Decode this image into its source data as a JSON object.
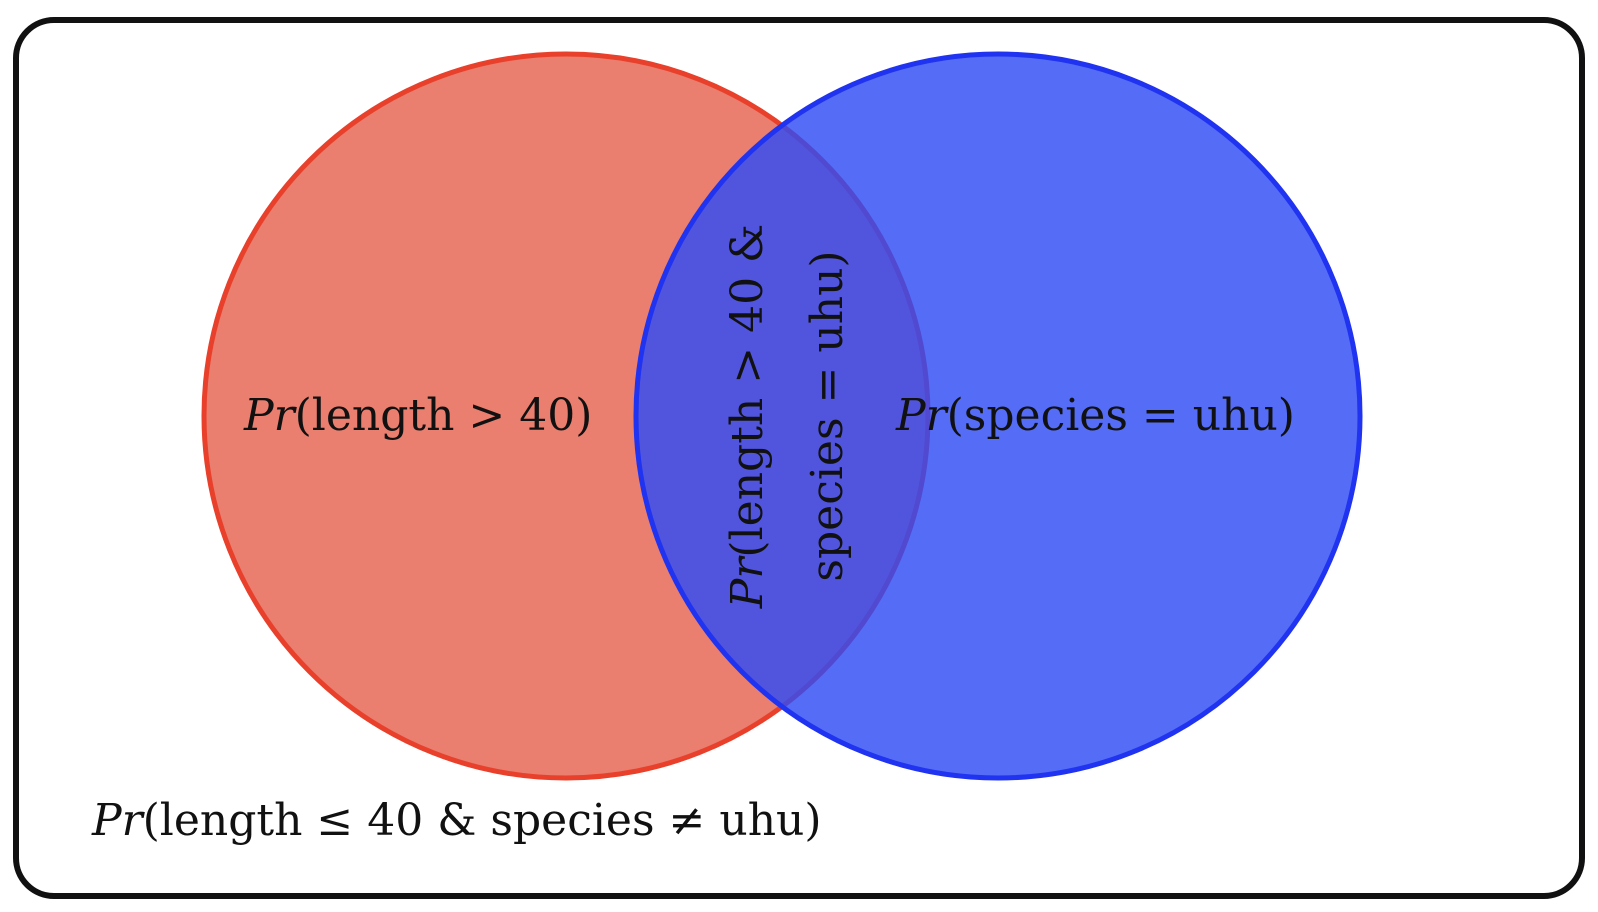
{
  "diagram": {
    "type": "venn",
    "colors": {
      "set_a_fill": "#e8705f",
      "set_a_stroke": "#e8402b",
      "set_b_fill": "#2f4cf5",
      "set_b_stroke": "#1f33f0",
      "frame": "#111111",
      "text": "#111111"
    },
    "sets": [
      {
        "id": "a",
        "prefix": "Pr",
        "text": "(length > 40)"
      },
      {
        "id": "b",
        "prefix": "Pr",
        "text": "(species = uhu)"
      }
    ],
    "intersection": {
      "prefix": "Pr",
      "line1": "(length > 40 &",
      "line2": "species = uhu)"
    },
    "complement": {
      "prefix": "Pr",
      "text": "(length ≤ 40 & species ≠ uhu)"
    }
  }
}
